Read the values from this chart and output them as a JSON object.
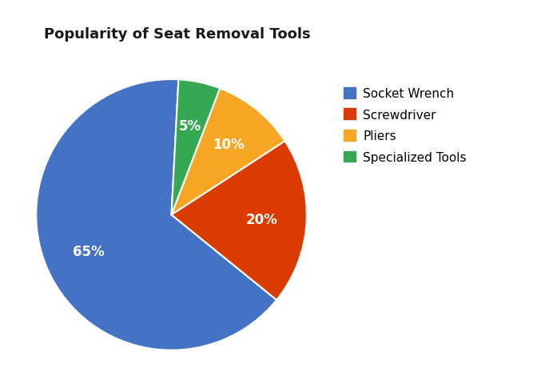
{
  "title": "Popularity of Seat Removal Tools",
  "labels": [
    "Socket Wrench",
    "Screwdriver",
    "Pliers",
    "Specialized Tools"
  ],
  "values": [
    65,
    20,
    10,
    5
  ],
  "colors": [
    "#4472C4",
    "#D93B00",
    "#F5A623",
    "#34A853"
  ],
  "startangle": 87,
  "title_fontsize": 13,
  "autopct_fontsize": 12,
  "legend_fontsize": 11,
  "background_color": "#ffffff",
  "text_color": "#ffffff"
}
